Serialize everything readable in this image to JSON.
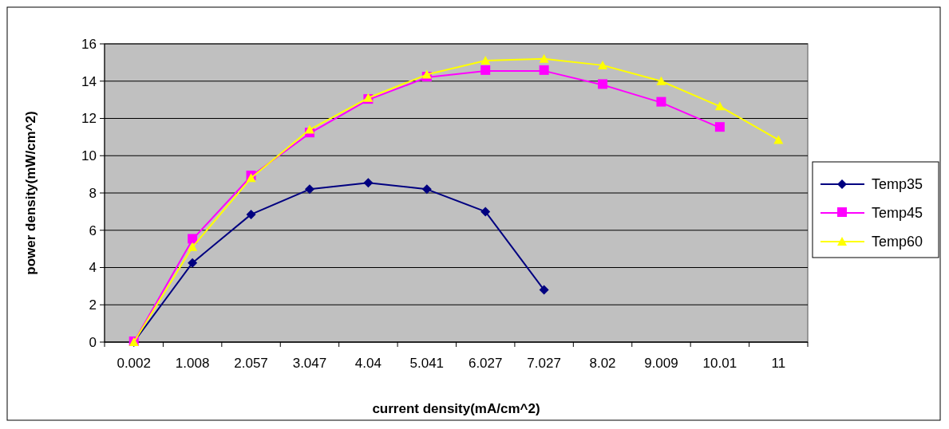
{
  "chart_data": {
    "type": "line",
    "xlabel": "current density(mA/cm^2)",
    "ylabel": "power density(mW/cm^2)",
    "categories": [
      "0.002",
      "1.008",
      "2.057",
      "3.047",
      "4.04",
      "5.041",
      "6.027",
      "7.027",
      "8.02",
      "9.009",
      "10.01",
      "11"
    ],
    "series": [
      {
        "name": "Temp35",
        "color": "#000080",
        "marker": "diamond",
        "values": [
          0,
          4.25,
          6.85,
          8.2,
          8.55,
          8.2,
          7.0,
          2.8,
          null,
          null,
          null,
          null
        ]
      },
      {
        "name": "Temp45",
        "color": "#ff00ff",
        "marker": "square",
        "values": [
          0,
          5.5,
          8.9,
          11.2,
          13.0,
          14.2,
          14.55,
          14.55,
          13.8,
          12.85,
          11.5,
          null
        ]
      },
      {
        "name": "Temp60",
        "color": "#ffff00",
        "marker": "triangle",
        "values": [
          0,
          5.1,
          8.8,
          11.4,
          13.1,
          14.35,
          15.1,
          15.2,
          14.85,
          14.0,
          12.65,
          10.85
        ]
      }
    ],
    "ylim": [
      0,
      16
    ],
    "yticks": [
      0,
      2,
      4,
      6,
      8,
      10,
      12,
      14,
      16
    ],
    "grid": "y",
    "legend": "right"
  }
}
